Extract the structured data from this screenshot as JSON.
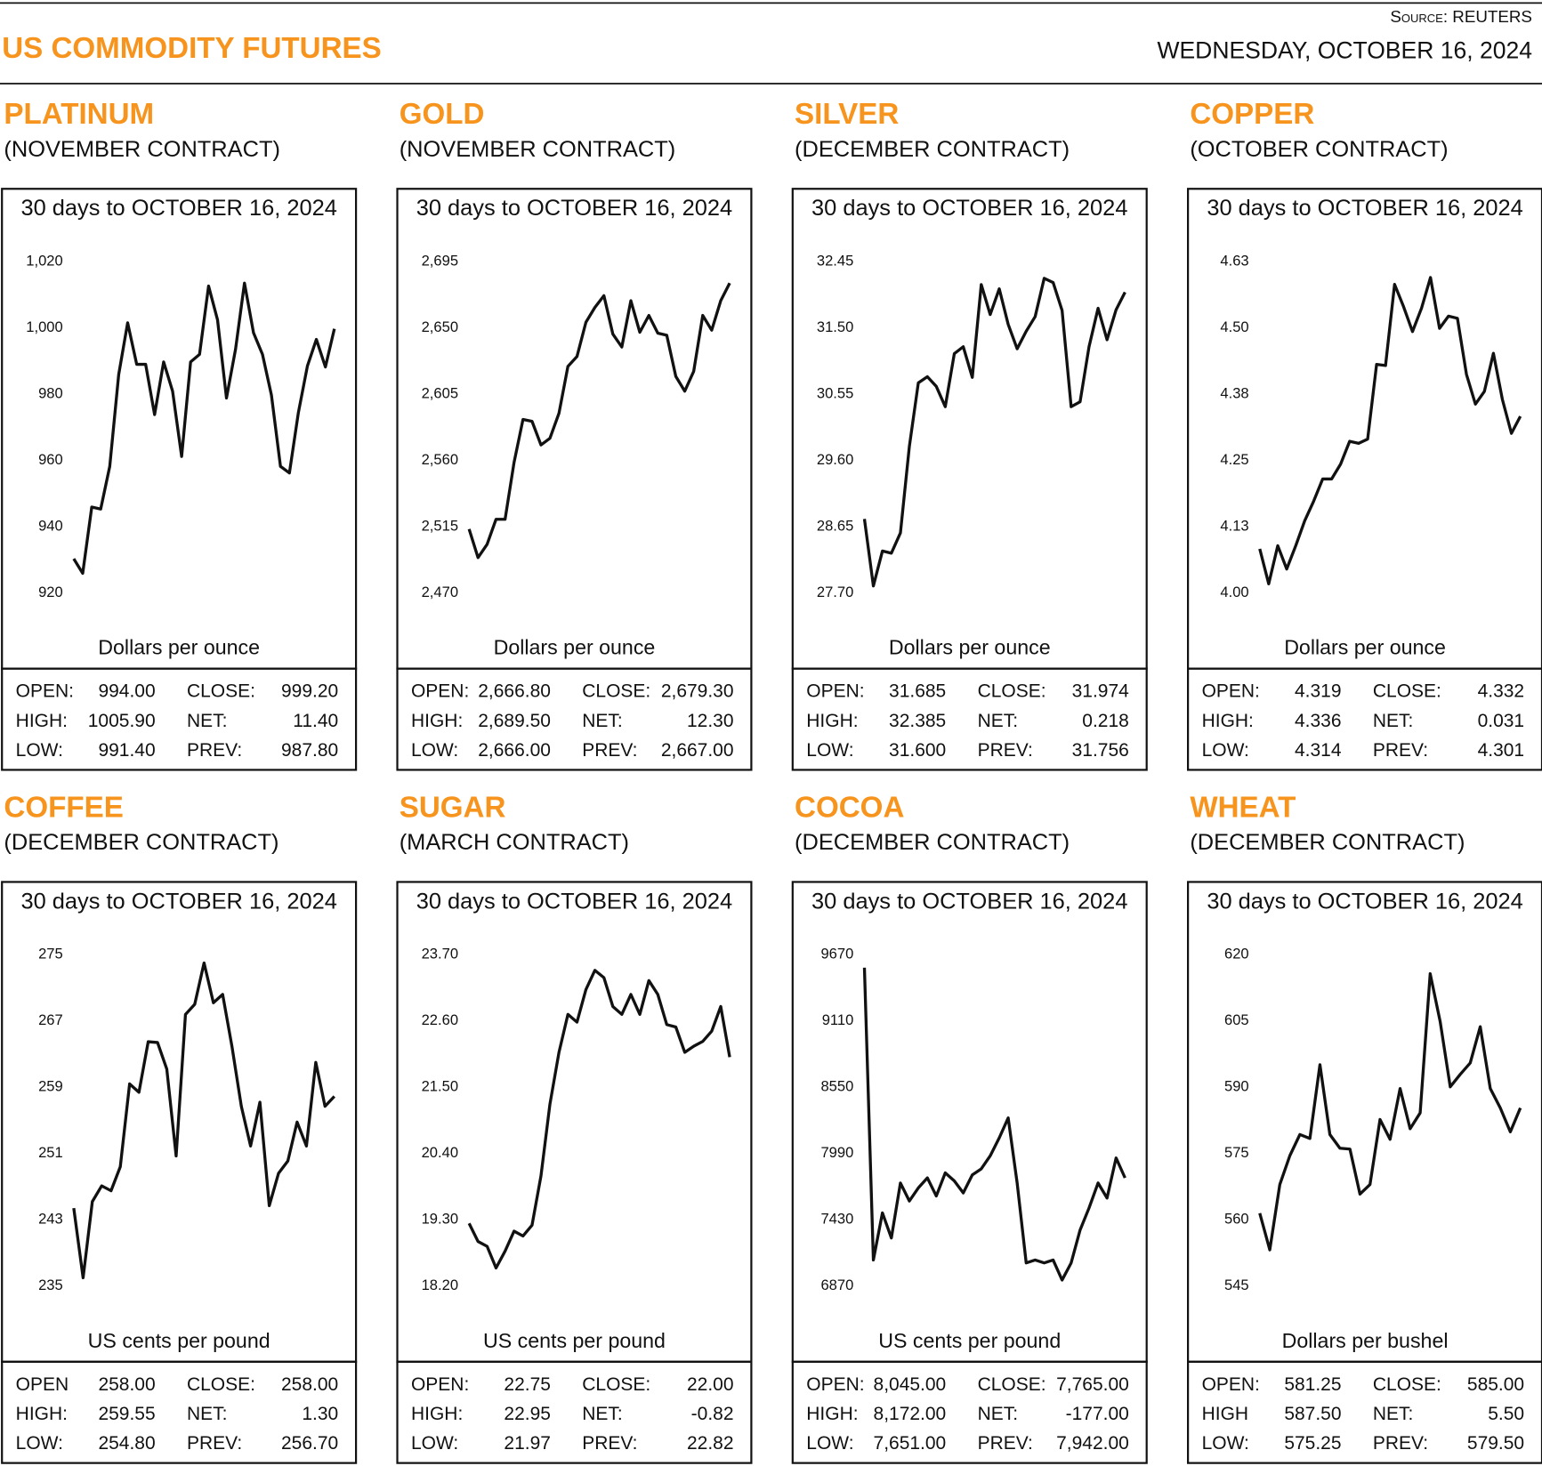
{
  "header": {
    "title": "US COMMODITY FUTURES",
    "source": "Source: REUTERS",
    "date": "WEDNESDAY, OCTOBER 16, 2024"
  },
  "chart_data": [
    {
      "type": "line",
      "title": "PLATINUM",
      "subtitle": "(NOVEMBER CONTRACT)",
      "chart_title": "30 days to OCTOBER 16, 2024",
      "y_label": "Dollars per ounce",
      "color": "#111111",
      "values": [
        930.3,
        925.9,
        945.9,
        945.3,
        958.2,
        985.9,
        1001.5,
        989,
        989,
        973.8,
        989.7,
        980.9,
        961.2,
        989.7,
        992,
        1012.6,
        1002.4,
        978.8,
        993.5,
        1013.5,
        998.5,
        992,
        979.7,
        958.2,
        956.2,
        974.4,
        988.5,
        996.5,
        988.2,
        999.7
      ],
      "ylim": [
        920,
        1020
      ],
      "yticks": [
        920,
        940,
        960,
        980,
        {
          "value": 1000,
          "label": "1,000"
        },
        {
          "value": 1020,
          "label": "1,020"
        }
      ],
      "stats": [
        [
          "OPEN:",
          "994.00",
          "CLOSE:",
          "999.20"
        ],
        [
          "HIGH:",
          "1005.90",
          "NET:",
          "11.40"
        ],
        [
          "LOW:",
          "991.40",
          "PREV:",
          "987.80"
        ]
      ]
    },
    {
      "type": "line",
      "title": "GOLD",
      "subtitle": "(NOVEMBER CONTRACT)",
      "chart_title": "30 days to OCTOBER 16, 2024",
      "y_label": "Dollars per ounce",
      "color": "#111111",
      "values": [
        2513.3,
        2494,
        2503,
        2520,
        2520,
        2558.5,
        2587.8,
        2586.5,
        2570.5,
        2575,
        2592,
        2623.8,
        2630.5,
        2653.8,
        2663.8,
        2671.8,
        2645.7,
        2637,
        2668.4,
        2647,
        2658.4,
        2646.4,
        2645,
        2617,
        2607,
        2620.5,
        2658.4,
        2648.4,
        2668.4,
        2680.4
      ],
      "ylim": [
        2470,
        2695
      ],
      "yticks": [
        {
          "value": 2470,
          "label": "2,470"
        },
        {
          "value": 2515,
          "label": "2,515"
        },
        {
          "value": 2560,
          "label": "2,560"
        },
        {
          "value": 2605,
          "label": "2,605"
        },
        {
          "value": 2650,
          "label": "2,650"
        },
        {
          "value": 2695,
          "label": "2,695"
        }
      ],
      "stats": [
        [
          "OPEN:",
          "2,666.80",
          "CLOSE:",
          "2,679.30"
        ],
        [
          "HIGH:",
          "2,689.50",
          "NET:",
          "12.30"
        ],
        [
          "LOW:",
          "2,666.00",
          "PREV:",
          "2,667.00"
        ]
      ]
    },
    {
      "type": "line",
      "title": "SILVER",
      "subtitle": "(DECEMBER CONTRACT)",
      "chart_title": "30 days to OCTOBER 16, 2024",
      "y_label": "Dollars per ounce",
      "color": "#111111",
      "values": [
        28.76,
        27.8,
        28.3,
        28.27,
        28.56,
        29.8,
        30.71,
        30.8,
        30.66,
        30.37,
        31.13,
        31.23,
        30.79,
        32.12,
        31.69,
        32.06,
        31.55,
        31.2,
        31.45,
        31.66,
        32.21,
        32.15,
        31.75,
        30.37,
        30.44,
        31.23,
        31.78,
        31.33,
        31.76,
        32.01
      ],
      "ylim": [
        27.7,
        32.45
      ],
      "yticks": [
        {
          "value": 27.7,
          "label": "27.70"
        },
        28.65,
        {
          "value": 29.6,
          "label": "29.60"
        },
        30.55,
        {
          "value": 31.5,
          "label": "31.50"
        },
        32.45
      ],
      "stats": [
        [
          "OPEN:",
          "31.685",
          "CLOSE:",
          "31.974"
        ],
        [
          "HIGH:",
          "32.385",
          "NET:",
          "0.218"
        ],
        [
          "LOW:",
          "31.600",
          "PREV:",
          "31.756"
        ]
      ]
    },
    {
      "type": "line",
      "title": "COPPER",
      "subtitle": "(OCTOBER CONTRACT)",
      "chart_title": "30 days to OCTOBER 16, 2024",
      "y_label": "Dollars per ounce",
      "color": "#111111",
      "values": [
        4.083,
        4.017,
        4.089,
        4.045,
        4.089,
        4.136,
        4.173,
        4.215,
        4.215,
        4.243,
        4.286,
        4.282,
        4.29,
        4.431,
        4.429,
        4.582,
        4.54,
        4.493,
        4.537,
        4.595,
        4.499,
        4.522,
        4.518,
        4.412,
        4.356,
        4.38,
        4.452,
        4.365,
        4.301,
        4.333
      ],
      "ylim": [
        4,
        4.625
      ],
      "yticks": [
        {
          "value": 4,
          "label": "4.00"
        },
        {
          "value": 4.125,
          "label": "4.13"
        },
        4.25,
        {
          "value": 4.375,
          "label": "4.38"
        },
        {
          "value": 4.5,
          "label": "4.50"
        },
        {
          "value": 4.625,
          "label": "4.63"
        }
      ],
      "stats": [
        [
          "OPEN:",
          "4.319",
          "CLOSE:",
          "4.332"
        ],
        [
          "HIGH:",
          "4.336",
          "NET:",
          "0.031"
        ],
        [
          "LOW:",
          "4.314",
          "PREV:",
          "4.301"
        ]
      ]
    },
    {
      "type": "line",
      "title": "COFFEE",
      "subtitle": "(DECEMBER CONTRACT)",
      "chart_title": "30 days to OCTOBER 16, 2024",
      "y_label": "US cents per pound",
      "color": "#111111",
      "values": [
        244.4,
        236,
        245.2,
        247.1,
        246.5,
        249.4,
        259.4,
        258.4,
        264.5,
        264.4,
        261.2,
        250.7,
        267.8,
        269,
        274,
        269.2,
        270.2,
        263.9,
        256.7,
        251.9,
        257.2,
        244.7,
        248.6,
        250.1,
        254.8,
        251.9,
        262,
        256.7,
        257.9
      ],
      "ylim": [
        235,
        275
      ],
      "yticks": [
        235,
        243,
        251,
        259,
        267,
        275
      ],
      "stats": [
        [
          "OPEN",
          "258.00",
          "CLOSE:",
          "258.00"
        ],
        [
          "HIGH:",
          "259.55",
          "NET:",
          "1.30"
        ],
        [
          "LOW:",
          "254.80",
          "PREV:",
          "256.70"
        ]
      ]
    },
    {
      "type": "line",
      "title": "SUGAR",
      "subtitle": "(MARCH CONTRACT)",
      "chart_title": "30 days to OCTOBER 16, 2024",
      "y_label": "US cents per pound",
      "color": "#111111",
      "values": [
        19.24,
        18.94,
        18.86,
        18.5,
        18.78,
        19.11,
        19.03,
        19.21,
        20.03,
        21.22,
        22.08,
        22.71,
        22.58,
        23.12,
        23.44,
        23.32,
        22.84,
        22.71,
        23.04,
        22.71,
        23.27,
        23.04,
        22.54,
        22.5,
        22.08,
        22.18,
        22.26,
        22.43,
        22.84,
        22
      ],
      "ylim": [
        18.2,
        23.7
      ],
      "yticks": [
        {
          "value": 18.2,
          "label": "18.20"
        },
        {
          "value": 19.3,
          "label": "19.30"
        },
        {
          "value": 20.4,
          "label": "20.40"
        },
        {
          "value": 21.5,
          "label": "21.50"
        },
        {
          "value": 22.6,
          "label": "22.60"
        },
        {
          "value": 23.7,
          "label": "23.70"
        }
      ],
      "stats": [
        [
          "OPEN:",
          "22.75",
          "CLOSE:",
          "22.00"
        ],
        [
          "HIGH:",
          "22.95",
          "NET:",
          "-0.82"
        ],
        [
          "LOW:",
          "21.97",
          "PREV:",
          "22.82"
        ]
      ]
    },
    {
      "type": "line",
      "title": "COCOA",
      "subtitle": "(DECEMBER CONTRACT)",
      "chart_title": "30 days to OCTOBER 16, 2024",
      "y_label": "US cents per pound",
      "color": "#111111",
      "values": [
        9560,
        7090,
        7488,
        7276,
        7741,
        7589,
        7699,
        7784,
        7631,
        7826,
        7758,
        7657,
        7809,
        7860,
        7970,
        8122,
        8291,
        7741,
        7065,
        7090,
        7065,
        7090,
        6921,
        7065,
        7344,
        7530,
        7741,
        7614,
        7953,
        7784
      ],
      "ylim": [
        6870,
        9670
      ],
      "yticks": [
        6870,
        7430,
        7990,
        8550,
        9110,
        9670
      ],
      "stats": [
        [
          "OPEN:",
          "8,045.00",
          "CLOSE:",
          "7,765.00"
        ],
        [
          "HIGH:",
          "8,172.00",
          "NET:",
          "-177.00"
        ],
        [
          "LOW:",
          "7,651.00",
          "PREV:",
          "7,942.00"
        ]
      ]
    },
    {
      "type": "line",
      "title": "WHEAT",
      "subtitle": "(DECEMBER CONTRACT)",
      "chart_title": "30 days to OCTOBER 16, 2024",
      "y_label": "Dollars per bushel",
      "color": "#111111",
      "values": [
        561.5,
        553.2,
        568,
        574.5,
        579.3,
        578.4,
        595.1,
        579.3,
        576.2,
        576,
        565.8,
        568,
        582.7,
        578.2,
        589.7,
        580.6,
        584.2,
        615.7,
        604.8,
        590.1,
        592.9,
        595.5,
        603.7,
        589.7,
        585.3,
        579.9,
        585.3
      ],
      "ylim": [
        545,
        620
      ],
      "yticks": [
        545,
        560,
        575,
        590,
        605,
        620
      ],
      "stats": [
        [
          "OPEN:",
          "581.25",
          "CLOSE:",
          "585.00"
        ],
        [
          "HIGH",
          "587.50",
          "NET:",
          "5.50"
        ],
        [
          "LOW:",
          "575.25",
          "PREV:",
          "579.50"
        ]
      ]
    }
  ]
}
